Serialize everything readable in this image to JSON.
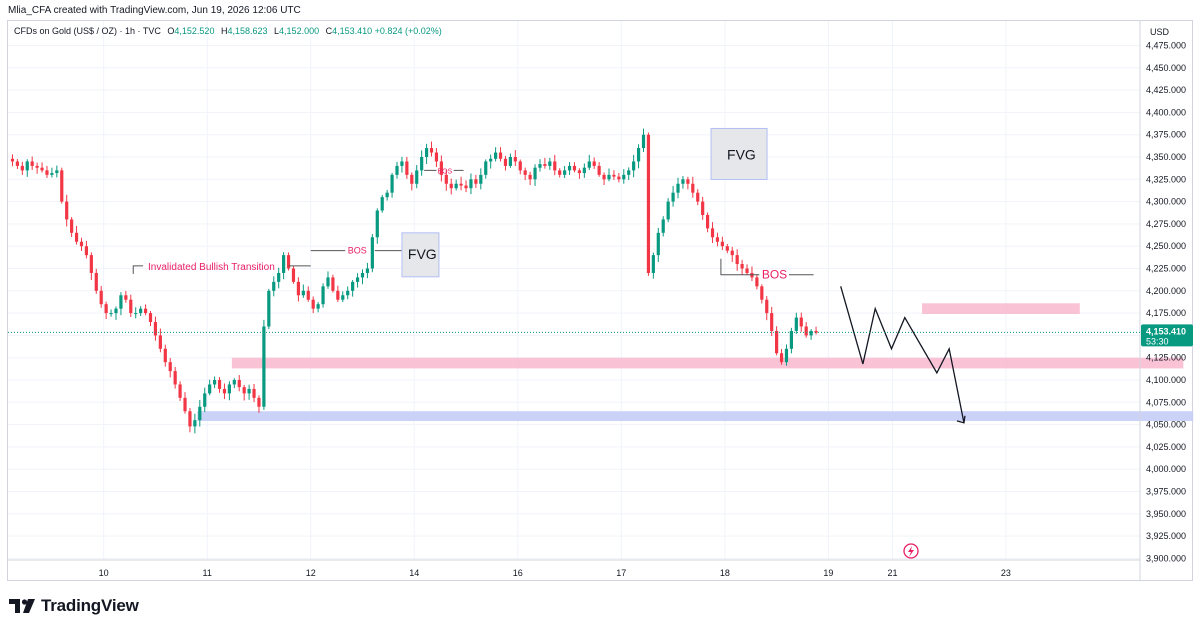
{
  "header": {
    "credit": "Mlia_CFA created with TradingView.com, Jun 19, 2026 12:06 UTC"
  },
  "legend": {
    "symbol": "CFDs on Gold (US$ / OZ) · 1h · TVC",
    "open_label": "O",
    "open": "4,152.520",
    "high_label": "H",
    "high": "4,158.623",
    "low_label": "L",
    "low": "4,152.000",
    "close_label": "C",
    "close": "4,153.410",
    "change": "+0.824 (+0.02%)"
  },
  "price_axis": {
    "currency": "USD",
    "last_price": "4,153.410",
    "countdown": "53:30"
  },
  "footer": {
    "brand": "TradingView"
  },
  "colors": {
    "up": "#089981",
    "down": "#f23645",
    "pink_zone": "#f8bbd0",
    "blue_zone": "#c5cdf7",
    "fvg_box": "#e6e7ea",
    "fvg_border": "#b2bff5",
    "annotation": "#e91e63",
    "grid": "#f0f3fa"
  },
  "chart_data": {
    "type": "candlestick",
    "title": "",
    "ylim": [
      3900,
      4475
    ],
    "y_ticks": [
      3900,
      3925,
      3950,
      3975,
      4000,
      4025,
      4050,
      4075,
      4100,
      4125,
      4150,
      4175,
      4200,
      4225,
      4250,
      4275,
      4300,
      4325,
      4350,
      4375,
      4400,
      4425,
      4450,
      4475
    ],
    "x_ticks": [
      "10",
      "11",
      "12",
      "14",
      "16",
      "17",
      "18",
      "19",
      "21",
      "23"
    ],
    "x_tick_bar_index": [
      19,
      40,
      61,
      82,
      103,
      124,
      145,
      166,
      179,
      202
    ],
    "ohlc_close_path": [
      4345,
      4340,
      4335,
      4345,
      4340,
      4338,
      4335,
      4330,
      4332,
      4335,
      4300,
      4280,
      4265,
      4255,
      4250,
      4240,
      4220,
      4200,
      4185,
      4175,
      4175,
      4180,
      4195,
      4190,
      4175,
      4175,
      4180,
      4175,
      4165,
      4150,
      4135,
      4120,
      4110,
      4095,
      4080,
      4065,
      4048,
      4055,
      4070,
      4085,
      4095,
      4100,
      4090,
      4085,
      4095,
      4100,
      4092,
      4085,
      4090,
      4080,
      4070,
      4160,
      4200,
      4210,
      4220,
      4240,
      4225,
      4210,
      4195,
      4200,
      4190,
      4180,
      4185,
      4205,
      4215,
      4200,
      4190,
      4195,
      4200,
      4210,
      4215,
      4220,
      4225,
      4260,
      4290,
      4305,
      4310,
      4330,
      4340,
      4345,
      4330,
      4320,
      4335,
      4350,
      4360,
      4355,
      4345,
      4330,
      4320,
      4315,
      4320,
      4318,
      4315,
      4325,
      4320,
      4330,
      4345,
      4348,
      4355,
      4348,
      4340,
      4350,
      4345,
      4335,
      4330,
      4325,
      4338,
      4342,
      4340,
      4345,
      4335,
      4330,
      4335,
      4340,
      4335,
      4332,
      4338,
      4345,
      4340,
      4330,
      4325,
      4330,
      4328,
      4325,
      4330,
      4335,
      4345,
      4360,
      4375,
      4220,
      4240,
      4265,
      4280,
      4300,
      4310,
      4320,
      4325,
      4320,
      4310,
      4300,
      4285,
      4270,
      4260,
      4255,
      4250,
      4245,
      4240,
      4230,
      4225,
      4220,
      4215,
      4205,
      4190,
      4175,
      4155,
      4130,
      4120,
      4135,
      4155,
      4170,
      4160,
      4150,
      4155,
      4153
    ],
    "series": [
      {
        "name": "",
        "type": "zone",
        "from": 4113,
        "to": 4125,
        "start_bar": 45,
        "end_bar": 238
      },
      {
        "name": "",
        "type": "zone",
        "from": 4054,
        "to": 4065,
        "start_bar": 38,
        "end_bar": 240
      },
      {
        "name": "",
        "type": "zone",
        "from": 4174,
        "to": 4186,
        "start_bar": 185,
        "end_bar": 217
      }
    ],
    "annotations": [
      {
        "text": "Invalidated Bullish Transition",
        "price": 4228
      },
      {
        "text": "BOS",
        "price": 4245
      },
      {
        "text": "FVG",
        "price": 4240
      },
      {
        "text": "BOS",
        "price": 4335
      },
      {
        "text": "FVG",
        "price": 4350
      },
      {
        "text": "BOS",
        "price": 4218
      }
    ],
    "projection_path": [
      4205,
      4118,
      4180,
      4135,
      4170,
      4108,
      4135,
      4052
    ],
    "grid": true
  }
}
